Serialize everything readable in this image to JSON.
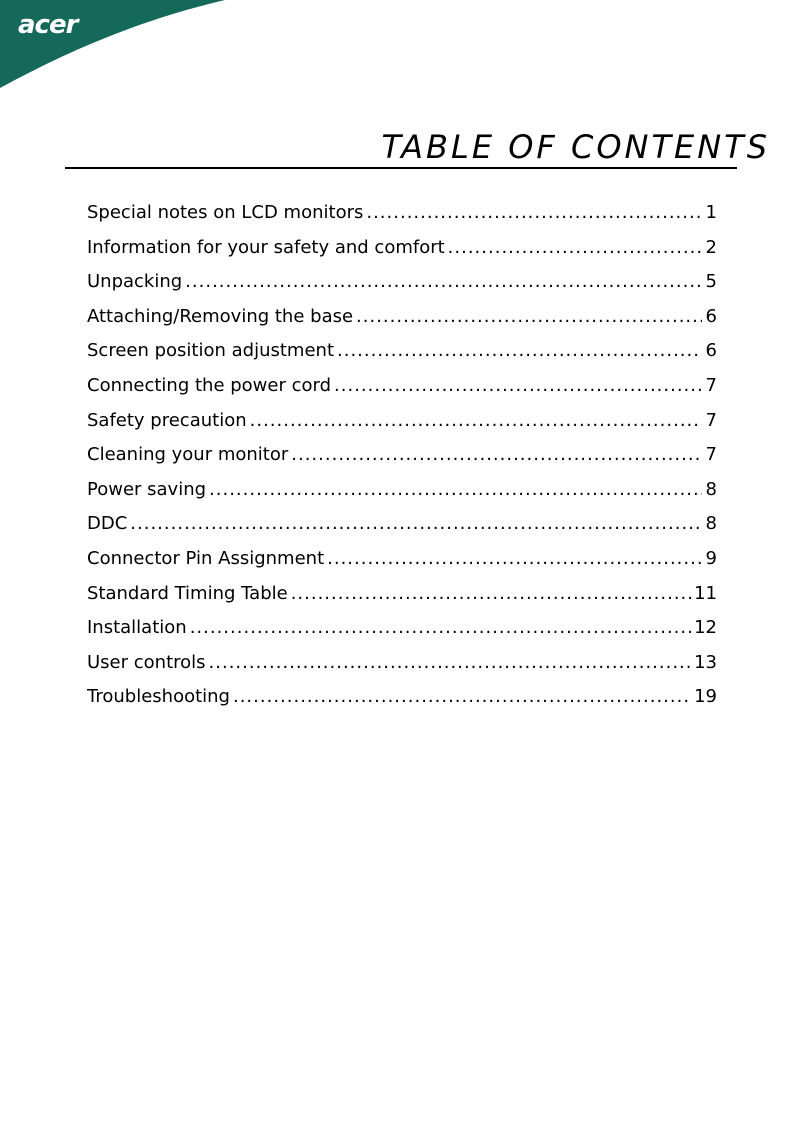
{
  "brand": {
    "logo_text": "acer",
    "color": "#14695a"
  },
  "heading": "TABLE OF CONTENTS",
  "entries": [
    {
      "label": "Special notes on LCD monitors",
      "page": "1"
    },
    {
      "label": "Information for your safety and comfort",
      "page": "2"
    },
    {
      "label": "Unpacking",
      "page": "5"
    },
    {
      "label": "Attaching/Removing the base",
      "page": "6"
    },
    {
      "label": "Screen position adjustment",
      "page": "6"
    },
    {
      "label": "Connecting the power cord",
      "page": "7"
    },
    {
      "label": "Safety precaution",
      "page": "7"
    },
    {
      "label": "Cleaning your monitor",
      "page": "7"
    },
    {
      "label": "Power saving",
      "page": "8"
    },
    {
      "label": "DDC",
      "page": "8"
    },
    {
      "label": "Connector Pin Assignment",
      "page": "9"
    },
    {
      "label": "Standard Timing Table",
      "page": "11"
    },
    {
      "label": "Installation",
      "page": "12"
    },
    {
      "label": "User controls",
      "page": "13"
    },
    {
      "label": "Troubleshooting",
      "page": "19"
    }
  ]
}
